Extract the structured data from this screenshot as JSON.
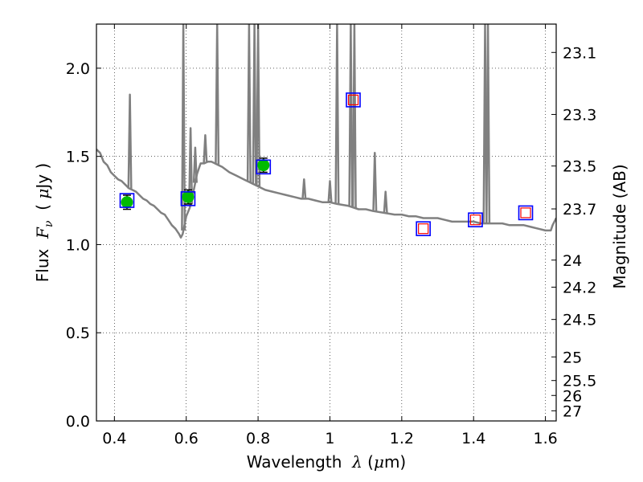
{
  "chart_data": {
    "type": "line",
    "xlabel": "Wavelength  λ (μm)",
    "ylabel": "Flux  F_ν  ( μJy )",
    "y2label": "Magnitude (AB)",
    "xlim": [
      0.35,
      1.63
    ],
    "ylim": [
      0.0,
      2.25
    ],
    "grid": true,
    "grid_style": "dotted",
    "x_ticks": [
      0.4,
      0.6,
      0.8,
      1.0,
      1.2,
      1.4,
      1.6
    ],
    "x_tick_labels": [
      "0.4",
      "0.6",
      "0.8",
      "1",
      "1.2",
      "1.4",
      "1.6"
    ],
    "y_ticks": [
      0.0,
      0.5,
      1.0,
      1.5,
      2.0
    ],
    "y_tick_labels": [
      "0.0",
      "0.5",
      "1.0",
      "1.5",
      "2.0"
    ],
    "right_axis_magnitudes": [
      "23.1",
      "23.3",
      "23.5",
      "23.7",
      "24",
      "24.2",
      "24.5",
      "25",
      "25.5",
      "26",
      "27"
    ],
    "colors": {
      "spectrum": "#808080",
      "observed_marker": "#00bb00",
      "model_box": "#0000ff",
      "nir_open_marker": "#ff0000",
      "errorbar": "#000000"
    },
    "spectrum": {
      "x": [
        0.35,
        0.36,
        0.37,
        0.38,
        0.39,
        0.4,
        0.41,
        0.42,
        0.43,
        0.44,
        0.45,
        0.46,
        0.47,
        0.48,
        0.49,
        0.5,
        0.51,
        0.52,
        0.53,
        0.54,
        0.55,
        0.56,
        0.57,
        0.58,
        0.585,
        0.59,
        0.6,
        0.61,
        0.62,
        0.63,
        0.64,
        0.65,
        0.66,
        0.67,
        0.68,
        0.69,
        0.7,
        0.72,
        0.74,
        0.76,
        0.78,
        0.8,
        0.82,
        0.84,
        0.86,
        0.88,
        0.9,
        0.92,
        0.94,
        0.96,
        0.98,
        1.0,
        1.02,
        1.05,
        1.08,
        1.1,
        1.12,
        1.15,
        1.18,
        1.2,
        1.22,
        1.24,
        1.26,
        1.28,
        1.3,
        1.32,
        1.34,
        1.36,
        1.38,
        1.4,
        1.42,
        1.44,
        1.46,
        1.48,
        1.5,
        1.52,
        1.54,
        1.56,
        1.58,
        1.6,
        1.615,
        1.62,
        1.63
      ],
      "y": [
        1.54,
        1.52,
        1.47,
        1.45,
        1.41,
        1.39,
        1.37,
        1.36,
        1.34,
        1.32,
        1.31,
        1.3,
        1.28,
        1.26,
        1.25,
        1.23,
        1.22,
        1.2,
        1.18,
        1.17,
        1.14,
        1.11,
        1.09,
        1.06,
        1.04,
        1.06,
        1.16,
        1.21,
        1.3,
        1.4,
        1.46,
        1.46,
        1.47,
        1.47,
        1.46,
        1.45,
        1.44,
        1.41,
        1.39,
        1.37,
        1.35,
        1.33,
        1.31,
        1.3,
        1.29,
        1.28,
        1.27,
        1.26,
        1.26,
        1.25,
        1.24,
        1.24,
        1.23,
        1.22,
        1.2,
        1.2,
        1.19,
        1.18,
        1.17,
        1.17,
        1.16,
        1.16,
        1.15,
        1.15,
        1.15,
        1.14,
        1.13,
        1.13,
        1.13,
        1.13,
        1.12,
        1.12,
        1.12,
        1.12,
        1.11,
        1.11,
        1.11,
        1.1,
        1.09,
        1.08,
        1.08,
        1.11,
        1.15
      ]
    },
    "emission_lines": [
      {
        "x": 0.443,
        "peak": 1.85
      },
      {
        "x": 0.592,
        "peak": 2.25
      },
      {
        "x": 0.612,
        "peak": 1.66
      },
      {
        "x": 0.625,
        "peak": 1.55
      },
      {
        "x": 0.653,
        "peak": 1.62
      },
      {
        "x": 0.686,
        "peak": 2.25
      },
      {
        "x": 0.775,
        "peak": 2.25
      },
      {
        "x": 0.79,
        "peak": 2.25
      },
      {
        "x": 0.8,
        "peak": 2.25
      },
      {
        "x": 0.928,
        "peak": 1.37
      },
      {
        "x": 1.0,
        "peak": 1.36
      },
      {
        "x": 1.02,
        "peak": 2.25
      },
      {
        "x": 1.058,
        "peak": 2.25
      },
      {
        "x": 1.068,
        "peak": 2.25
      },
      {
        "x": 1.125,
        "peak": 1.52
      },
      {
        "x": 1.155,
        "peak": 1.3
      },
      {
        "x": 1.432,
        "peak": 2.25
      },
      {
        "x": 1.44,
        "peak": 2.25
      }
    ],
    "photometry_observed": {
      "x": [
        0.435,
        0.605,
        0.815
      ],
      "y": [
        1.24,
        1.27,
        1.45
      ],
      "yerr": [
        0.04,
        0.04,
        0.04
      ]
    },
    "model_photometry": {
      "x": [
        0.435,
        0.605,
        0.815,
        1.065,
        1.26,
        1.405,
        1.545
      ],
      "y": [
        1.25,
        1.26,
        1.44,
        1.82,
        1.09,
        1.14,
        1.18
      ]
    },
    "nir_open_points": {
      "x": [
        1.065,
        1.26,
        1.405,
        1.545
      ],
      "y": [
        1.82,
        1.09,
        1.14,
        1.18
      ]
    }
  }
}
